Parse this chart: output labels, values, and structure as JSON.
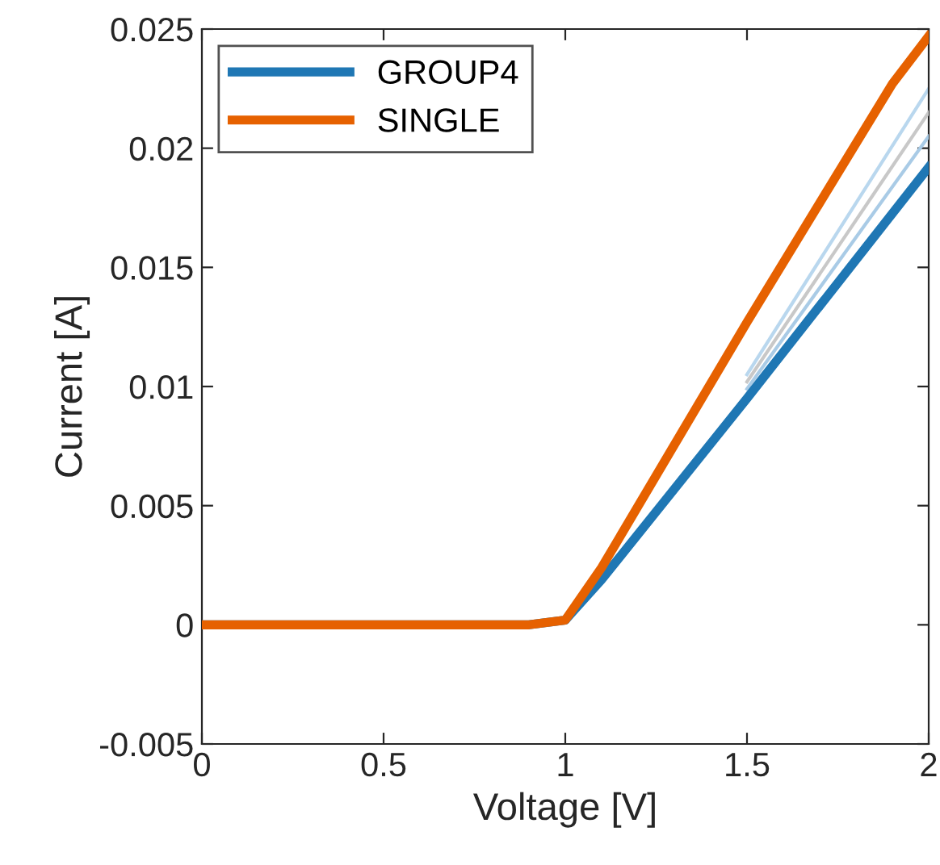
{
  "chart_data": {
    "type": "line",
    "xlabel": "Voltage [V]",
    "ylabel": "Current [A]",
    "xlim": [
      0,
      2
    ],
    "xticks": [
      0,
      0.5,
      1,
      1.5,
      2
    ],
    "ylim": [
      -0.005,
      0.025
    ],
    "yticks": [
      -0.005,
      0,
      0.005,
      0.01,
      0.015,
      0.02,
      0.025
    ],
    "grid": false,
    "legend": "top left",
    "line_style": "solid",
    "marker": "none",
    "series": [
      {
        "color": "#b9d7ee",
        "x": [
          1.5,
          2.0
        ],
        "values": [
          0.0105,
          0.0225
        ]
      },
      {
        "color": "#c8c8c8",
        "x": [
          1.5,
          2.0
        ],
        "values": [
          0.0102,
          0.0215
        ]
      },
      {
        "color": "#a9cbe6",
        "x": [
          1.5,
          2.0
        ],
        "values": [
          0.0099,
          0.0205
        ]
      },
      {
        "name": "GROUP4",
        "color": "#1f77b4",
        "x": [
          0,
          0.9,
          1.0,
          1.1,
          1.5,
          2.0
        ],
        "values": [
          0,
          0,
          0.0002,
          0.0019,
          0.0095,
          0.0192
        ]
      },
      {
        "name": "SINGLE",
        "color": "#e66100",
        "x": [
          0,
          0.9,
          1.0,
          1.1,
          1.5,
          1.9,
          2.0
        ],
        "values": [
          0,
          0,
          0.0002,
          0.0024,
          0.0127,
          0.0227,
          0.0247
        ]
      }
    ]
  }
}
